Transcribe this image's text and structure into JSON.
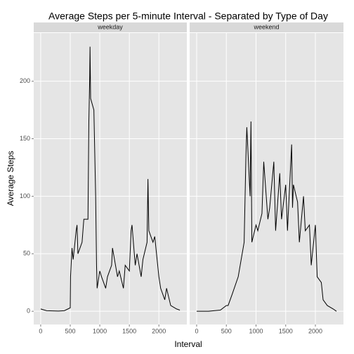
{
  "chart_data": {
    "type": "line",
    "facet": true,
    "title": "Average Steps per 5-minute Interval - Separated by Type of Day",
    "x_label": "Interval",
    "y_label": "Average Steps",
    "xlim": [
      -118,
      2473
    ],
    "ylim": [
      -11.5,
      241.9
    ],
    "xticks": [
      0,
      500,
      1000,
      1500,
      2000
    ],
    "yticks": [
      0,
      50,
      100,
      150,
      200
    ],
    "grid": true,
    "color": "#000000",
    "series": [
      {
        "name": "weekday",
        "x": [
          0,
          100,
          200,
          300,
          400,
          500,
          505,
          530,
          550,
          600,
          615,
          630,
          700,
          730,
          800,
          815,
          830,
          835,
          845,
          900,
          930,
          945,
          955,
          1000,
          1030,
          1100,
          1130,
          1200,
          1215,
          1300,
          1330,
          1400,
          1430,
          1500,
          1530,
          1545,
          1600,
          1630,
          1700,
          1730,
          1800,
          1815,
          1830,
          1900,
          1930,
          2000,
          2030,
          2100,
          2130,
          2200,
          2300,
          2355
        ],
        "values": [
          2,
          0.5,
          0.3,
          0.2,
          0.5,
          3,
          30,
          55,
          45,
          70,
          75,
          50,
          60,
          80,
          80,
          165,
          205,
          230,
          185,
          175,
          100,
          40,
          20,
          35,
          30,
          20,
          30,
          40,
          55,
          30,
          35,
          20,
          40,
          35,
          70,
          75,
          40,
          50,
          30,
          45,
          60,
          115,
          70,
          60,
          65,
          30,
          20,
          10,
          20,
          5,
          2,
          1
        ]
      },
      {
        "name": "weekend",
        "x": [
          0,
          200,
          400,
          500,
          530,
          600,
          700,
          800,
          830,
          845,
          900,
          915,
          930,
          1000,
          1030,
          1100,
          1130,
          1200,
          1230,
          1300,
          1330,
          1400,
          1430,
          1500,
          1530,
          1600,
          1615,
          1630,
          1700,
          1730,
          1800,
          1830,
          1900,
          1930,
          2000,
          2030,
          2100,
          2130,
          2200,
          2300,
          2355
        ],
        "values": [
          0,
          0,
          1,
          5,
          5,
          15,
          30,
          60,
          135,
          160,
          100,
          165,
          60,
          75,
          70,
          85,
          130,
          80,
          90,
          130,
          70,
          120,
          80,
          110,
          70,
          145,
          90,
          110,
          95,
          60,
          100,
          70,
          75,
          40,
          75,
          30,
          25,
          10,
          5,
          2,
          0
        ]
      }
    ]
  }
}
